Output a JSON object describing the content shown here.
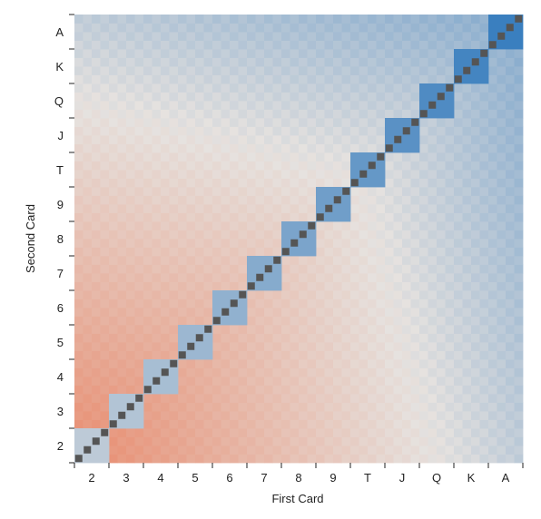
{
  "chart_data": {
    "type": "heatmap",
    "xlabel": "First Card",
    "ylabel": "Second Card",
    "x_categories": [
      "2",
      "3",
      "4",
      "5",
      "6",
      "7",
      "8",
      "9",
      "T",
      "J",
      "Q",
      "K",
      "A"
    ],
    "y_categories": [
      "2",
      "3",
      "4",
      "5",
      "6",
      "7",
      "8",
      "9",
      "T",
      "J",
      "Q",
      "K",
      "A"
    ],
    "y_order": "bottom-to-top",
    "color_scale": {
      "low_color": "#e8896b",
      "mid_color": "#e6e2df",
      "high_color": "#3a7fbf",
      "diagonal_color": "#555555"
    },
    "grid": false,
    "legend": "none"
  }
}
